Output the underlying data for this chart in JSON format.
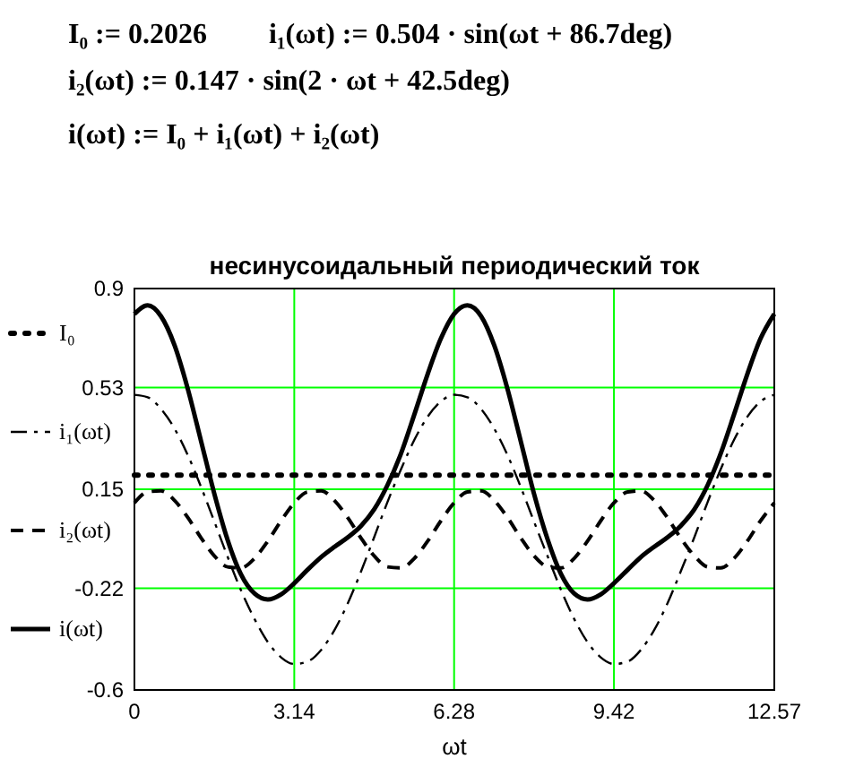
{
  "chart_data": {
    "type": "line",
    "title": "несинусоидальный периодический ток",
    "xlabel": "ωt",
    "annotations": [
      "I₀ := 0.2026",
      "i₁(ωt) := 0.504 · sin(ωt + 86.7deg)",
      "i₂(ωt) := 0.147 · sin(2 · ωt + 42.5deg)",
      "i(ωt) := I₀ + i₁(ωt) + i₂(ωt)"
    ],
    "x": [
      0,
      0.26,
      0.52,
      0.79,
      1.05,
      1.31,
      1.57,
      1.83,
      2.09,
      2.36,
      2.62,
      2.88,
      3.14,
      3.4,
      3.67,
      3.93,
      4.19,
      4.45,
      4.71,
      4.97,
      5.24,
      5.5,
      5.76,
      6.02,
      6.28,
      6.54,
      6.81,
      7.07,
      7.33,
      7.59,
      7.85,
      8.12,
      8.38,
      8.64,
      8.9,
      9.16,
      9.42,
      9.69,
      9.95,
      10.21,
      10.47,
      10.73,
      11.0,
      11.26,
      11.52,
      11.78,
      12.04,
      12.3,
      12.57
    ],
    "series": [
      {
        "name": "I₀",
        "color": "#000000",
        "line_style": "dotted",
        "x": [
          0,
          12.57
        ],
        "values": [
          0.203,
          0.203
        ]
      },
      {
        "name": "i₁(ωt)",
        "color": "#000000",
        "line_style": "dashdot",
        "values": [
          0.503,
          0.494,
          0.45,
          0.376,
          0.277,
          0.158,
          0.029,
          -0.102,
          -0.226,
          -0.335,
          -0.421,
          -0.478,
          -0.503,
          -0.494,
          -0.45,
          -0.376,
          -0.277,
          -0.158,
          -0.029,
          0.102,
          0.226,
          0.335,
          0.421,
          0.478,
          0.503,
          0.494,
          0.45,
          0.376,
          0.277,
          0.158,
          0.029,
          -0.102,
          -0.226,
          -0.335,
          -0.421,
          -0.478,
          -0.503,
          -0.494,
          -0.45,
          -0.376,
          -0.277,
          -0.158,
          -0.029,
          0.102,
          0.226,
          0.335,
          0.421,
          0.478,
          0.503
        ]
      },
      {
        "name": "i₂(ωt)",
        "color": "#000000",
        "line_style": "dashed",
        "values": [
          0.099,
          0.14,
          0.144,
          0.108,
          0.044,
          -0.032,
          -0.099,
          -0.14,
          -0.144,
          -0.108,
          -0.044,
          0.032,
          0.099,
          0.14,
          0.144,
          0.108,
          0.044,
          -0.032,
          -0.099,
          -0.14,
          -0.144,
          -0.108,
          -0.044,
          0.032,
          0.099,
          0.14,
          0.144,
          0.108,
          0.044,
          -0.032,
          -0.099,
          -0.14,
          -0.144,
          -0.108,
          -0.044,
          0.032,
          0.099,
          0.14,
          0.144,
          0.108,
          0.044,
          -0.032,
          -0.099,
          -0.14,
          -0.144,
          -0.108,
          -0.044,
          0.032,
          0.099
        ]
      },
      {
        "name": "i(ωt)",
        "color": "#000000",
        "line_style": "solid",
        "values": [
          0.805,
          0.837,
          0.797,
          0.687,
          0.524,
          0.329,
          0.133,
          -0.039,
          -0.167,
          -0.24,
          -0.262,
          -0.243,
          -0.201,
          -0.151,
          -0.103,
          -0.065,
          -0.03,
          0.013,
          0.075,
          0.165,
          0.285,
          0.43,
          0.58,
          0.713,
          0.805,
          0.837,
          0.797,
          0.687,
          0.524,
          0.329,
          0.133,
          -0.039,
          -0.167,
          -0.24,
          -0.262,
          -0.243,
          -0.201,
          -0.151,
          -0.103,
          -0.065,
          -0.03,
          0.013,
          0.075,
          0.165,
          0.285,
          0.43,
          0.58,
          0.713,
          0.805
        ]
      }
    ],
    "xlim": [
      0,
      12.57
    ],
    "xticks": [
      0,
      3.14,
      6.28,
      9.42,
      12.57
    ],
    "ylim": [
      -0.6,
      0.9
    ],
    "yticks": [
      -0.6,
      -0.22,
      0.15,
      0.53,
      0.9
    ],
    "grid": true,
    "legend": "left"
  }
}
